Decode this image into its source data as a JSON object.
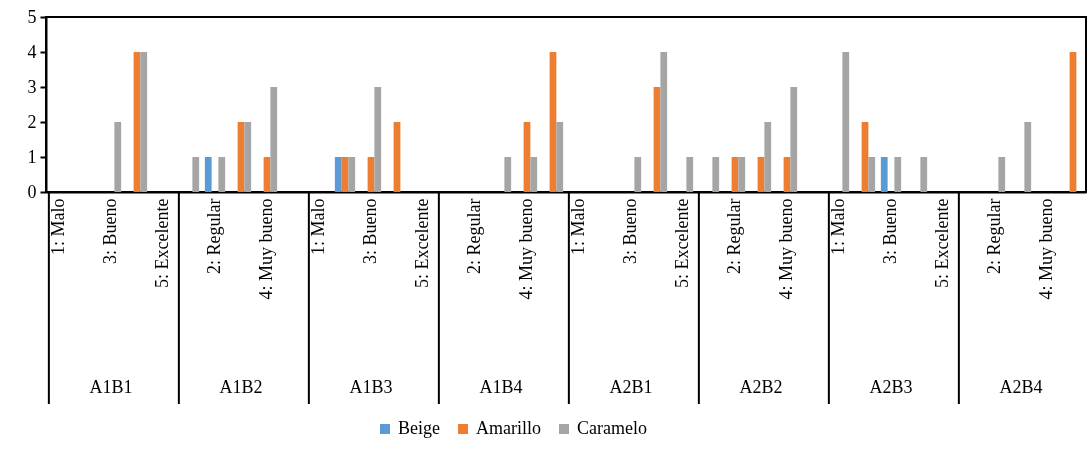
{
  "chart_data": {
    "type": "bar",
    "categories": [
      "1: Malo",
      null,
      "3: Bueno",
      null,
      "5: Excelente",
      null,
      "2: Regular",
      null,
      "4: Muy bueno",
      null,
      "1: Malo",
      null,
      "3: Bueno",
      null,
      "5: Excelente",
      null,
      "2: Regular",
      null,
      "4: Muy bueno",
      null,
      "1: Malo",
      null,
      "3: Bueno",
      null,
      "5: Excelente",
      null,
      "2: Regular",
      null,
      "4: Muy bueno",
      null,
      "1: Malo",
      null,
      "3: Bueno",
      null,
      "5: Excelente",
      null,
      "2: Regular",
      null,
      "4: Muy bueno",
      null
    ],
    "series": [
      {
        "name": "Beige",
        "color": "#5b9bd5",
        "values": [
          0,
          0,
          0,
          0,
          0,
          0,
          1,
          0,
          0,
          0,
          0,
          1,
          0,
          0,
          0,
          0,
          0,
          0,
          0,
          0,
          0,
          0,
          0,
          0,
          0,
          0,
          0,
          0,
          0,
          0,
          0,
          0,
          1,
          0,
          0,
          0,
          0,
          0,
          0,
          0
        ]
      },
      {
        "name": "Amarillo",
        "color": "#ed7d31",
        "values": [
          0,
          0,
          0,
          4,
          0,
          0,
          0,
          2,
          1,
          0,
          0,
          1,
          1,
          2,
          0,
          0,
          0,
          0,
          2,
          4,
          0,
          0,
          0,
          3,
          0,
          0,
          1,
          1,
          1,
          0,
          0,
          2,
          0,
          0,
          0,
          0,
          0,
          0,
          0,
          4
        ]
      },
      {
        "name": "Caramelo",
        "color": "#a5a5a5",
        "values": [
          0,
          0,
          2,
          4,
          0,
          1,
          1,
          2,
          3,
          0,
          0,
          1,
          3,
          0,
          0,
          0,
          0,
          1,
          1,
          2,
          0,
          0,
          1,
          4,
          1,
          1,
          1,
          2,
          3,
          0,
          4,
          1,
          1,
          1,
          0,
          0,
          1,
          2,
          0,
          null
        ]
      }
    ],
    "annotations": [
      "A1B1",
      "A1B2",
      "A1B3",
      "A1B4",
      "A2B1",
      "A2B2",
      "A2B3",
      "A2B4"
    ],
    "ylim": [
      0,
      5
    ],
    "yticks": [
      0,
      1,
      2,
      3,
      4,
      5
    ],
    "grid": false,
    "legend": "bottom"
  }
}
